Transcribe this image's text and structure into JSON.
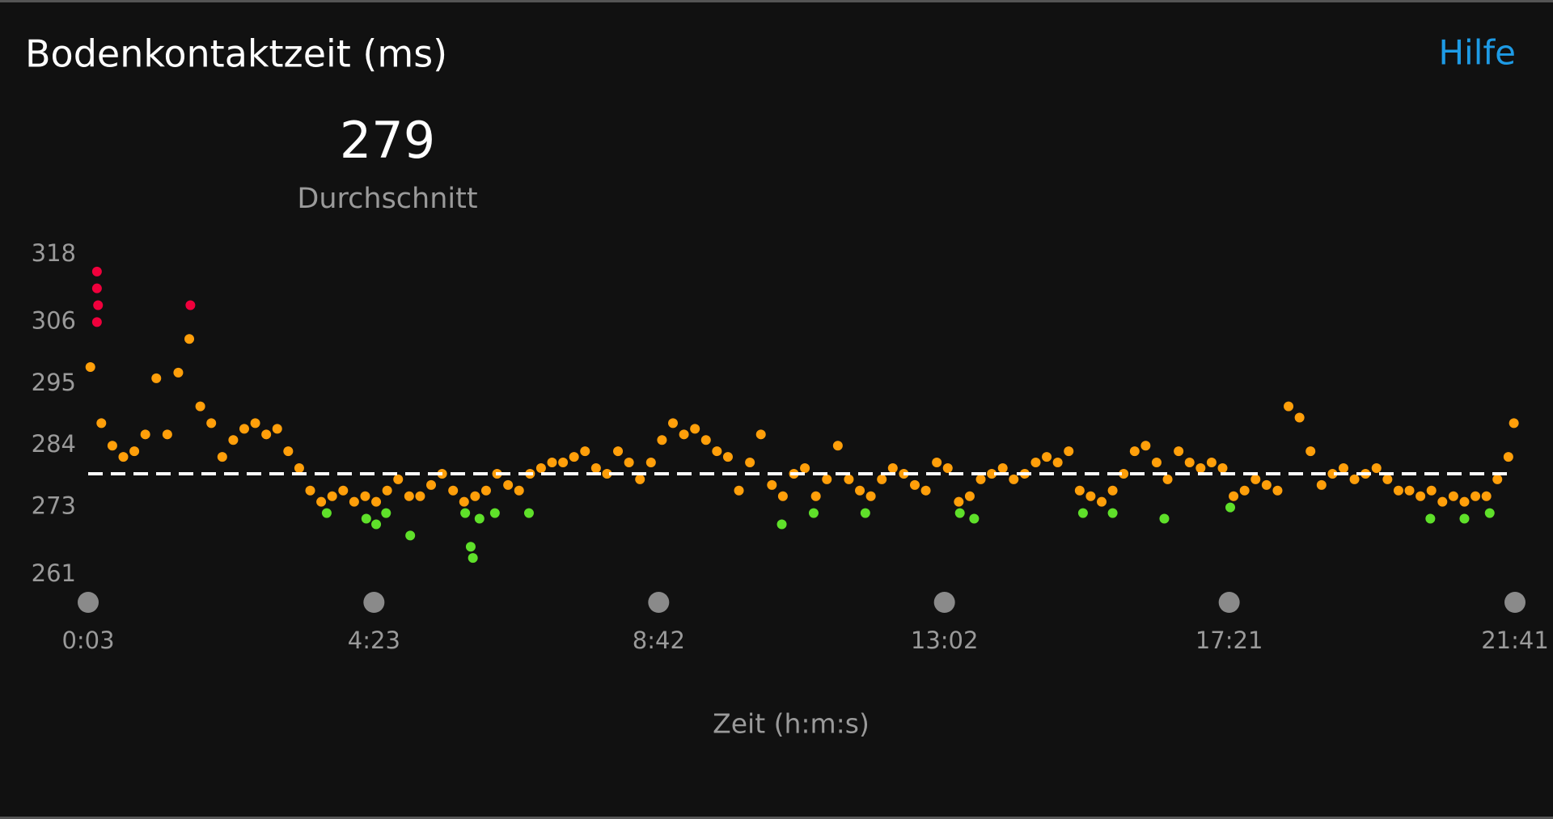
{
  "chart_data": {
    "type": "scatter",
    "title": "Bodenkontaktzeit (ms)",
    "help": "Hilfe",
    "average": {
      "value": 279,
      "label": "Durchschnitt"
    },
    "xlabel": "Zeit (h:m:s)",
    "xlim": [
      3,
      1301
    ],
    "xticks": [
      {
        "value": 3,
        "label": "0:03"
      },
      {
        "value": 263,
        "label": "4:23"
      },
      {
        "value": 522,
        "label": "8:42"
      },
      {
        "value": 782,
        "label": "13:02"
      },
      {
        "value": 1041,
        "label": "17:21"
      },
      {
        "value": 1301,
        "label": "21:41"
      }
    ],
    "ylim": [
      261,
      318
    ],
    "yticks": [
      318,
      306,
      295,
      284,
      273,
      261
    ],
    "grid": false,
    "series": [
      {
        "color": "#ff9f0a",
        "x": [
          5,
          15,
          25,
          35,
          45,
          55,
          65,
          75,
          85,
          95,
          105,
          115,
          125,
          135,
          145,
          155,
          165,
          175,
          185,
          195,
          205,
          215,
          225,
          235,
          245,
          255,
          265,
          275,
          285,
          295,
          305,
          315,
          325,
          335,
          345,
          355,
          365,
          375,
          385,
          395,
          405,
          415,
          425,
          435,
          445,
          455,
          465,
          475,
          485,
          495,
          505,
          515,
          525,
          535,
          545,
          555,
          565,
          575,
          585,
          595,
          605,
          615,
          625,
          635,
          645,
          655,
          665,
          675,
          685,
          695,
          705,
          715,
          725,
          735,
          745,
          755,
          765,
          775,
          785,
          795,
          805,
          815,
          825,
          835,
          845,
          855,
          865,
          875,
          885,
          895,
          905,
          915,
          925,
          935,
          945,
          955,
          965,
          975,
          985,
          995,
          1005,
          1015,
          1025,
          1035,
          1045,
          1055,
          1065,
          1075,
          1085,
          1095,
          1105,
          1115,
          1125,
          1135,
          1145,
          1155,
          1165,
          1175,
          1185,
          1195,
          1205,
          1215,
          1225,
          1235,
          1245,
          1255,
          1265,
          1275,
          1285,
          1295,
          1300
        ],
        "values": [
          298,
          288,
          284,
          282,
          283,
          286,
          296,
          286,
          297,
          303,
          291,
          288,
          282,
          285,
          287,
          288,
          286,
          287,
          283,
          280,
          276,
          274,
          275,
          276,
          274,
          275,
          274,
          276,
          278,
          275,
          275,
          277,
          279,
          276,
          274,
          275,
          276,
          279,
          277,
          276,
          279,
          280,
          281,
          281,
          282,
          283,
          280,
          279,
          283,
          281,
          278,
          281,
          285,
          288,
          286,
          287,
          285,
          283,
          282,
          276,
          281,
          286,
          277,
          275,
          279,
          280,
          275,
          278,
          284,
          278,
          276,
          275,
          278,
          280,
          279,
          277,
          276,
          281,
          280,
          274,
          275,
          278,
          279,
          280,
          278,
          279,
          281,
          282,
          281,
          283,
          276,
          275,
          274,
          276,
          279,
          283,
          284,
          281,
          278,
          283,
          281,
          280,
          281,
          280,
          275,
          276,
          278,
          277,
          276,
          291,
          289,
          283,
          277,
          279,
          280,
          278,
          279,
          280,
          278,
          276,
          276,
          275,
          276,
          274,
          275,
          274,
          275,
          275,
          278,
          282,
          288
        ]
      },
      {
        "color": "#f0003c",
        "x": [
          11,
          11,
          12,
          11,
          96
        ],
        "values": [
          315,
          312,
          309,
          306,
          309
        ]
      },
      {
        "color": "#5fe02a",
        "x": [
          220,
          256,
          265,
          274,
          296,
          346,
          351,
          353,
          359,
          373,
          404,
          634,
          663,
          710,
          796,
          809,
          908,
          935,
          982,
          1042,
          1224,
          1255,
          1278
        ],
        "values": [
          272,
          271,
          270,
          272,
          268,
          272,
          266,
          264,
          271,
          272,
          272,
          270,
          272,
          272,
          272,
          271,
          272,
          272,
          271,
          273,
          271,
          271,
          272
        ]
      }
    ]
  }
}
